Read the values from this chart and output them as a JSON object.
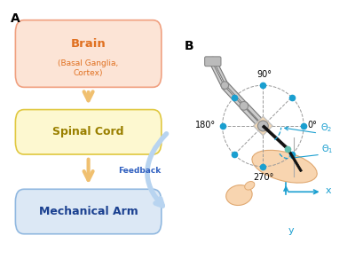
{
  "panel_A_label": "A",
  "panel_B_label": "B",
  "box_brain_text": "Brain",
  "box_brain_sub": "(Basal Ganglia,\nCortex)",
  "box_spinal_text": "Spinal Cord",
  "box_mech_text": "Mechanical Arm",
  "feedback_text": "Feedback",
  "box_brain_facecolor": "#fce4d6",
  "box_brain_edgecolor": "#f0a080",
  "box_brain_textcolor": "#e07020",
  "box_spinal_facecolor": "#fdf8d0",
  "box_spinal_edgecolor": "#e0c840",
  "box_spinal_textcolor": "#9a8000",
  "box_mech_facecolor": "#dce8f5",
  "box_mech_edgecolor": "#90b8e0",
  "box_mech_textcolor": "#1a4090",
  "arrow_down_color": "#f0c070",
  "feedback_arrow_color": "#b8d4f0",
  "feedback_text_color": "#3060c0",
  "dot_color": "#1a9fd0",
  "dashed_color": "#999999",
  "arm_gray": "#aaaaaa",
  "arm_gray_edge": "#777777",
  "arm_gray_light": "#cccccc",
  "joint_color": "#bbbbbb",
  "joint_edge": "#888888",
  "black_arm_color": "#111111",
  "blue_axis_color": "#1a9fd0",
  "theta_color": "#1a9fd0",
  "body_fill": "#f8d5b0",
  "body_edge": "#e0a870",
  "shoulder_fill": "#f0d8b8",
  "shoulder_edge": "#bbbbbb"
}
